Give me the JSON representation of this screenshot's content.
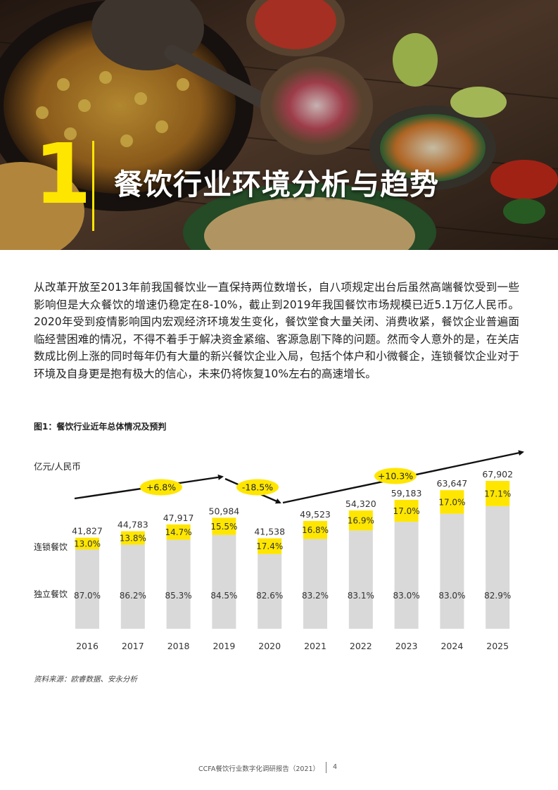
{
  "header": {
    "section_number": "1",
    "section_title": "餐饮行业环境分析与趋势"
  },
  "body_text": "从改革开放至2013年前我国餐饮业一直保持两位数增长，自八项规定出台后虽然高端餐饮受到一些影响但是大众餐饮的增速仍稳定在8-10%，截止到2019年我国餐饮市场规模已近5.1万亿人民币。2020年受到疫情影响国内宏观经济环境发生变化，餐饮堂食大量关闭、消费收紧，餐饮企业普遍面临经营困难的情况，不得不着手于解决资金紧缩、客源急剧下降的问题。然而令人意外的是，在关店数成比例上涨的同时每年仍有大量的新兴餐饮企业入局，包括个体户和小微餐企，连锁餐饮企业对于环境及自身更是抱有极大的信心，未来仍将恢复10%左右的高速增长。",
  "figure": {
    "title": "图1：餐饮行业近年总体情况及预判",
    "source": "资料来源：欧睿数据、安永分析"
  },
  "chart_data": {
    "type": "bar",
    "stacked": true,
    "ylabel": "亿元/人民币",
    "categories": [
      "2016",
      "2017",
      "2018",
      "2019",
      "2020",
      "2021",
      "2022",
      "2023",
      "2024",
      "2025"
    ],
    "totals": [
      41827,
      44783,
      47917,
      50984,
      41538,
      49523,
      54320,
      59183,
      63647,
      67902
    ],
    "total_labels": [
      "41,827",
      "44,783",
      "47,917",
      "50,984",
      "41,538",
      "49,523",
      "54,320",
      "59,183",
      "63,647",
      "67,902"
    ],
    "series": [
      {
        "name": "独立餐饮",
        "color": "#d9d9d9",
        "values_pct": [
          87.0,
          86.2,
          85.3,
          84.5,
          82.6,
          83.2,
          83.1,
          83.0,
          83.0,
          82.9
        ],
        "labels": [
          "87.0%",
          "86.2%",
          "85.3%",
          "84.5%",
          "82.6%",
          "83.2%",
          "83.1%",
          "83.0%",
          "83.0%",
          "82.9%"
        ]
      },
      {
        "name": "连锁餐饮",
        "color": "#ffe600",
        "values_pct": [
          13.0,
          13.8,
          14.7,
          15.5,
          17.4,
          16.8,
          16.9,
          17.0,
          17.0,
          17.1
        ],
        "labels": [
          "13.0%",
          "13.8%",
          "14.7%",
          "15.5%",
          "17.4%",
          "16.8%",
          "16.9%",
          "17.0%",
          "17.0%",
          "17.1%"
        ]
      }
    ],
    "annotations": [
      {
        "label": "+6.8%",
        "from": "2016",
        "to": "2019"
      },
      {
        "label": "-18.5%",
        "from": "2019",
        "to": "2020"
      },
      {
        "label": "+10.3%",
        "from": "2020",
        "to": "2025"
      }
    ],
    "accent_color": "#ffe600",
    "grid": false
  },
  "footer": {
    "text": "CCFA餐饮行业数字化调研报告（2021）",
    "page": "4"
  }
}
